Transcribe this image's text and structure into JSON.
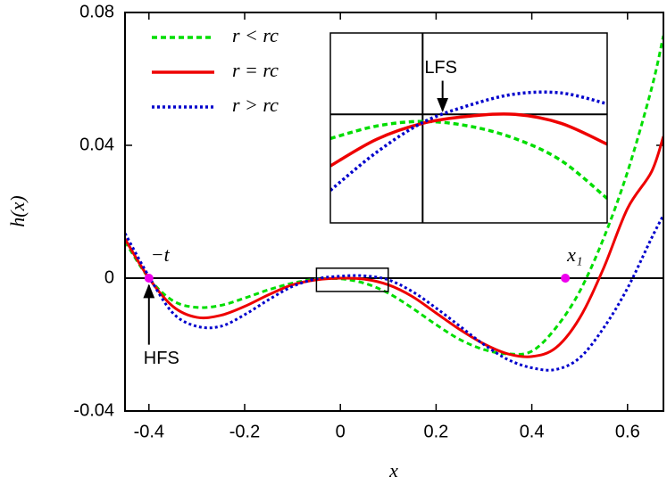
{
  "chart_data": [
    {
      "type": "line",
      "xlabel": "x",
      "ylabel": "h(x)",
      "xlim": [
        -0.45,
        0.675
      ],
      "ylim": [
        -0.04,
        0.08
      ],
      "xticks": [
        -0.4,
        -0.2,
        0,
        0.2,
        0.4,
        0.6
      ],
      "yticks": [
        -0.04,
        0,
        0.04,
        0.08
      ],
      "legend": "upper left",
      "x": [
        -0.45,
        -0.4,
        -0.35,
        -0.3,
        -0.25,
        -0.2,
        -0.15,
        -0.1,
        -0.05,
        0,
        0.05,
        0.1,
        0.15,
        0.2,
        0.25,
        0.3,
        0.35,
        0.4,
        0.45,
        0.5,
        0.55,
        0.6,
        0.65,
        0.675
      ],
      "series": [
        {
          "name": "r < rc",
          "color": "#00dd00",
          "style": "dashed",
          "values": [
            0.011,
            0,
            -0.0068,
            -0.0088,
            -0.0082,
            -0.006,
            -0.0035,
            -0.0015,
            -0.0003,
            -0.0002,
            -0.0015,
            -0.0045,
            -0.009,
            -0.014,
            -0.0185,
            -0.0215,
            -0.0228,
            -0.022,
            -0.015,
            -0.004,
            0.012,
            0.032,
            0.057,
            0.073
          ]
        },
        {
          "name": "r = rc",
          "color": "#ee0000",
          "style": "solid",
          "values": [
            0.0118,
            0,
            -0.0085,
            -0.0118,
            -0.0112,
            -0.0085,
            -0.005,
            -0.002,
            -0.0005,
            0,
            -0.0003,
            -0.002,
            -0.0055,
            -0.0105,
            -0.0155,
            -0.0198,
            -0.0228,
            -0.0236,
            -0.021,
            -0.012,
            0.003,
            0.021,
            0.032,
            0.0427
          ]
        },
        {
          "name": "r > rc",
          "color": "#0000cc",
          "style": "dotted",
          "values": [
            0.0135,
            0.0005,
            -0.0105,
            -0.0145,
            -0.0145,
            -0.011,
            -0.0065,
            -0.0025,
            -0.0002,
            0.0006,
            0.0007,
            -0.0005,
            -0.004,
            -0.009,
            -0.0145,
            -0.02,
            -0.0245,
            -0.027,
            -0.0275,
            -0.024,
            -0.015,
            -0.003,
            0.012,
            0.019
          ]
        }
      ],
      "points": [
        {
          "label": "−t",
          "x": -0.4,
          "y": 0,
          "color": "#ee00ee"
        },
        {
          "label": "x₁",
          "x": 0.47,
          "y": 0,
          "color": "#ee00ee"
        }
      ],
      "annotations": [
        {
          "text": "HFS",
          "x": -0.4,
          "y": -0.0125
        }
      ]
    },
    {
      "type": "line",
      "xlim": [
        -0.05,
        0.1
      ],
      "ylim": [
        -0.004,
        0.003
      ],
      "x": [
        -0.05,
        -0.025,
        0,
        0.025,
        0.05,
        0.075,
        0.1
      ],
      "series": [
        {
          "color": "#00dd00",
          "style": "dashed",
          "values": [
            -0.00089,
            -0.00043,
            -0.00026,
            -0.00043,
            -0.00089,
            -0.0017,
            -0.0031
          ]
        },
        {
          "color": "#ee0000",
          "style": "solid",
          "values": [
            -0.0019,
            -0.00092,
            -0.00033,
            -7e-05,
            0,
            -0.00033,
            -0.0011
          ]
        },
        {
          "color": "#0000cc",
          "style": "dotted",
          "values": [
            -0.0028,
            -0.0014,
            -0.0003,
            0.00033,
            0.00075,
            0.00079,
            0.00039
          ]
        }
      ],
      "annotations": [
        {
          "text": "LFS",
          "x": 0.005,
          "y": 0.0017
        }
      ]
    }
  ]
}
